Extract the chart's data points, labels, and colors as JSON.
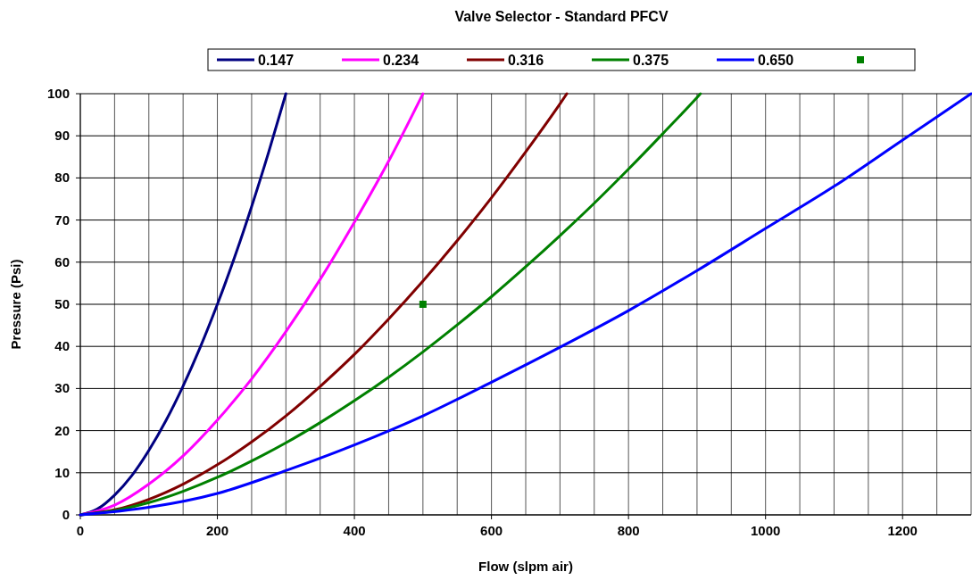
{
  "chart_data": {
    "type": "line",
    "title": "Valve Selector - Standard PFCV",
    "xlabel": "Flow (slpm air)",
    "ylabel": "Pressure (Psi)",
    "xlim": [
      0,
      1300
    ],
    "ylim": [
      0,
      100
    ],
    "xticks": [
      0,
      {
        "value": 50,
        "label": null
      },
      {
        "value": 100,
        "label": null
      },
      {
        "value": 150,
        "label": null
      },
      200,
      {
        "value": 250,
        "label": null
      },
      {
        "value": 300,
        "label": null
      },
      {
        "value": 350,
        "label": null
      },
      400,
      {
        "value": 450,
        "label": null
      },
      {
        "value": 500,
        "label": null
      },
      {
        "value": 550,
        "label": null
      },
      600,
      {
        "value": 650,
        "label": null
      },
      {
        "value": 700,
        "label": null
      },
      {
        "value": 750,
        "label": null
      },
      800,
      {
        "value": 850,
        "label": null
      },
      {
        "value": 900,
        "label": null
      },
      {
        "value": 950,
        "label": null
      },
      1000,
      {
        "value": 1050,
        "label": null
      },
      {
        "value": 1100,
        "label": null
      },
      {
        "value": 1150,
        "label": null
      },
      1200,
      {
        "value": 1250,
        "label": null
      },
      {
        "value": 1300,
        "label": null
      }
    ],
    "yticks": [
      0,
      10,
      20,
      30,
      40,
      50,
      60,
      70,
      80,
      90,
      100
    ],
    "grid": true,
    "legend": "top",
    "marker": "none",
    "line_style": "solid",
    "series": [
      {
        "name": "0.147",
        "color": "#000080",
        "x": [
          0,
          25,
          50,
          75,
          100,
          125,
          150,
          175,
          200,
          225,
          250,
          275,
          300
        ],
        "values": [
          0,
          1.4,
          4.7,
          9.3,
          15.3,
          22.4,
          30.6,
          39.8,
          50,
          61.1,
          73.2,
          86.2,
          100
        ]
      },
      {
        "name": "0.234",
        "color": "#ff00ff",
        "x": [
          0,
          50,
          100,
          150,
          200,
          250,
          300,
          350,
          400,
          450,
          500
        ],
        "values": [
          0,
          2.3,
          7.3,
          14,
          22.5,
          32.3,
          43.5,
          55.9,
          69.5,
          84,
          100
        ]
      },
      {
        "name": "0.316",
        "color": "#800000",
        "x": [
          0,
          50,
          100,
          150,
          200,
          250,
          300,
          350,
          400,
          450,
          500,
          550,
          600,
          650,
          700,
          710
        ],
        "values": [
          0,
          1.2,
          3.7,
          7.3,
          11.9,
          17.3,
          23.5,
          30.5,
          38.1,
          46.5,
          55.5,
          65.1,
          75.3,
          86.2,
          97.6,
          100
        ]
      },
      {
        "name": "0.375",
        "color": "#008000",
        "x": [
          0,
          50,
          100,
          150,
          200,
          250,
          300,
          350,
          400,
          450,
          500,
          550,
          600,
          650,
          700,
          750,
          800,
          850,
          900,
          905
        ],
        "values": [
          0,
          1,
          2.9,
          5.6,
          8.9,
          12.8,
          17.1,
          21.9,
          27.1,
          32.7,
          38.7,
          45.1,
          51.8,
          58.9,
          66.3,
          74,
          82.1,
          90.5,
          99.1,
          100
        ]
      },
      {
        "name": "0.650",
        "color": "#0000ff",
        "x": [
          0,
          100,
          200,
          300,
          400,
          500,
          600,
          700,
          800,
          900,
          1000,
          1100,
          1200,
          1300
        ],
        "values": [
          0,
          1.8,
          5.1,
          10.5,
          16.6,
          23.5,
          31.5,
          39.8,
          48.5,
          58,
          68,
          78,
          89,
          100
        ]
      },
      {
        "type": "scatter",
        "marker": "square",
        "color": "#008000",
        "x": [
          500
        ],
        "values": [
          50
        ]
      }
    ]
  }
}
